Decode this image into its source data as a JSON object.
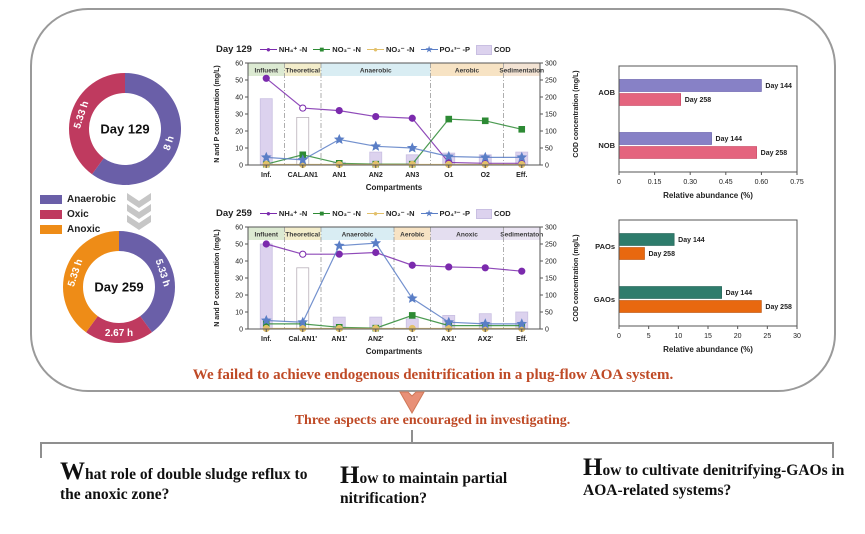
{
  "banner": {
    "conclusion": "We failed to achieve endogenous denitrification in a plug-flow AOA system.",
    "prompt": "Three aspects are encouraged in investigating.",
    "accent_color": "#bf4a26"
  },
  "questions": [
    {
      "initial": "W",
      "text": "hat role of double sludge reflux to the anoxic zone?"
    },
    {
      "initial": "H",
      "text": "ow to maintain partial nitrification?"
    },
    {
      "initial": "H",
      "text": "ow to cultivate denitrifying-GAOs in AOA-related systems?"
    }
  ],
  "zones": [
    {
      "label": "Anaerobic",
      "color": "#6a5fa8"
    },
    {
      "label": "Oxic",
      "color": "#bf3a5f"
    },
    {
      "label": "Anoxic",
      "color": "#ee8c17"
    }
  ],
  "chart_data": [
    {
      "id": "day129-profile",
      "type": "line",
      "title": "Day 129",
      "categories": [
        "Inf.",
        "CAL.AN1",
        "AN1",
        "AN2",
        "AN3",
        "O1",
        "O2",
        "Eff."
      ],
      "xlabel": "Compartments",
      "ylabel_left": "N and P concentration (mg/L)",
      "ylabel_right": "COD concentration (mg/L)",
      "ylim_left": [
        0,
        60
      ],
      "yticks_left": [
        "0",
        "10",
        "20",
        "30",
        "40",
        "50",
        "60"
      ],
      "ylim_right": [
        0,
        300
      ],
      "yticks_right": [
        "0",
        "50",
        "100",
        "150",
        "200",
        "250",
        "300"
      ],
      "regions": [
        {
          "label": "Influent",
          "span": [
            0,
            1
          ],
          "color": "#dcead2"
        },
        {
          "label": "Theoretical",
          "span": [
            1,
            2
          ],
          "color": "#f3edcb"
        },
        {
          "label": "Anaerobic",
          "span": [
            2,
            5
          ],
          "color": "#d9edf3"
        },
        {
          "label": "Aerobic",
          "span": [
            5,
            7
          ],
          "color": "#f7e3c4"
        },
        {
          "label": "Sedimentation",
          "span": [
            7,
            8
          ],
          "color": "#f3e3d3"
        }
      ],
      "cod_bars": {
        "name": "COD",
        "axis": "right",
        "color": "#dcd2ee",
        "stroke": "#c9bfe2",
        "values": [
          195,
          140,
          8,
          38,
          30,
          35,
          30,
          38
        ],
        "open_index": 1
      },
      "series": [
        {
          "name": "NH₄⁺ -N",
          "marker": "circle",
          "color": "#7b2aad",
          "values": [
            51,
            33.5,
            32,
            28.5,
            27.5,
            1.5,
            1,
            1
          ],
          "open_index": 1
        },
        {
          "name": "NO₃⁻ -N",
          "marker": "square",
          "color": "#2d8a34",
          "values": [
            0.5,
            6,
            1,
            0.5,
            0.5,
            27,
            26,
            21
          ]
        },
        {
          "name": "NO₂⁻ -N",
          "marker": "circle",
          "color": "#e2c06a",
          "values": [
            0.3,
            0.3,
            0.3,
            0.3,
            0.3,
            0.3,
            0.3,
            0.3
          ]
        },
        {
          "name": "PO₄³⁻ -P",
          "marker": "star",
          "color": "#5a7ec6",
          "values": [
            4.5,
            3,
            15,
            11,
            10,
            5,
            4.5,
            4.5
          ]
        }
      ]
    },
    {
      "id": "day259-profile",
      "type": "line",
      "title": "Day 259",
      "categories": [
        "Inf.",
        "Cal.AN1'",
        "AN1'",
        "AN2'",
        "O1'",
        "AX1'",
        "AX2'",
        "Eff."
      ],
      "xlabel": "Compartments",
      "ylabel_left": "N and P concentration (mg/L)",
      "ylabel_right": "COD concentration (mg/L)",
      "ylim_left": [
        0,
        60
      ],
      "yticks_left": [
        "0",
        "10",
        "20",
        "30",
        "40",
        "50",
        "60"
      ],
      "ylim_right": [
        0,
        300
      ],
      "yticks_right": [
        "0",
        "50",
        "100",
        "150",
        "200",
        "250",
        "300"
      ],
      "regions": [
        {
          "label": "Influent",
          "span": [
            0,
            1
          ],
          "color": "#dcead2"
        },
        {
          "label": "Theoretical",
          "span": [
            1,
            2
          ],
          "color": "#f3edcb"
        },
        {
          "label": "Anaerobic",
          "span": [
            2,
            4
          ],
          "color": "#d9edf3"
        },
        {
          "label": "Aerobic",
          "span": [
            4,
            5
          ],
          "color": "#f7e3c4"
        },
        {
          "label": "Anoxic",
          "span": [
            5,
            7
          ],
          "color": "#e4def0"
        },
        {
          "label": "Sedimentaton",
          "span": [
            7,
            8
          ],
          "color": "#eae4f2"
        }
      ],
      "cod_bars": {
        "name": "COD",
        "axis": "right",
        "color": "#dcd2ee",
        "stroke": "#c9bfe2",
        "values": [
          250,
          180,
          35,
          35,
          30,
          40,
          45,
          50
        ],
        "open_index": 1
      },
      "series": [
        {
          "name": "NH₄⁺ -N",
          "marker": "circle",
          "color": "#7b2aad",
          "values": [
            50,
            44,
            44,
            45,
            37.5,
            36.5,
            36,
            34
          ],
          "open_index": 1
        },
        {
          "name": "NO₃⁻ -N",
          "marker": "square",
          "color": "#2d8a34",
          "values": [
            3,
            3,
            1,
            0.5,
            8,
            2,
            2,
            2
          ]
        },
        {
          "name": "NO₂⁻ -N",
          "marker": "circle",
          "color": "#e2c06a",
          "values": [
            0.3,
            0.3,
            0.3,
            0.3,
            0.3,
            0.3,
            0.3,
            0.3
          ]
        },
        {
          "name": "PO₄³⁻ -P",
          "marker": "star",
          "color": "#5a7ec6",
          "values": [
            5,
            4,
            49,
            50.5,
            18,
            4,
            3,
            3
          ]
        }
      ]
    },
    {
      "id": "nitrifier-abundance",
      "type": "bar",
      "orientation": "horizontal",
      "categories": [
        "AOB",
        "NOB"
      ],
      "series": [
        {
          "name": "Day 144",
          "color": "#8781c6",
          "stroke": "#5f58a8",
          "values": [
            0.6,
            0.39
          ]
        },
        {
          "name": "Day 258",
          "color": "#e4647e",
          "stroke": "#c74763",
          "values": [
            0.26,
            0.58
          ]
        }
      ],
      "xlabel": "Relative abundance (%)",
      "xlim": [
        0,
        0.75
      ],
      "xticks": [
        "0",
        "0.15",
        "0.30",
        "0.45",
        "0.60",
        "0.75"
      ]
    },
    {
      "id": "pao-gao-abundance",
      "type": "bar",
      "orientation": "horizontal",
      "categories": [
        "PAOs",
        "GAOs"
      ],
      "series": [
        {
          "name": "Day 144",
          "color": "#2e7c6c",
          "stroke": "#1f5f52",
          "values": [
            9.3,
            17.3
          ]
        },
        {
          "name": "Day 258",
          "color": "#e8680f",
          "stroke": "#b84f08",
          "values": [
            4.3,
            24.0
          ]
        }
      ],
      "xlabel": "Relative abundance (%)",
      "xlim": [
        0,
        30
      ],
      "xticks": [
        "0",
        "5",
        "10",
        "15",
        "20",
        "25",
        "30"
      ]
    },
    {
      "id": "donut-day129",
      "type": "donut",
      "center_label": "Day 129",
      "unit": "h",
      "segments": [
        {
          "name": "Anaerobic",
          "value": 8,
          "label": "8 h",
          "color": "#6a5fa8"
        },
        {
          "name": "Oxic",
          "value": 5.33,
          "label": "5.33 h",
          "color": "#bf3a5f"
        }
      ]
    },
    {
      "id": "donut-day259",
      "type": "donut",
      "center_label": "Day 259",
      "unit": "h",
      "segments": [
        {
          "name": "Anaerobic",
          "value": 5.33,
          "label": "5.33 h",
          "color": "#6a5fa8"
        },
        {
          "name": "Oxic",
          "value": 2.67,
          "label": "2.67 h",
          "color": "#bf3a5f"
        },
        {
          "name": "Anoxic",
          "value": 5.33,
          "label": "5.33 h",
          "color": "#ee8c17"
        }
      ]
    }
  ]
}
